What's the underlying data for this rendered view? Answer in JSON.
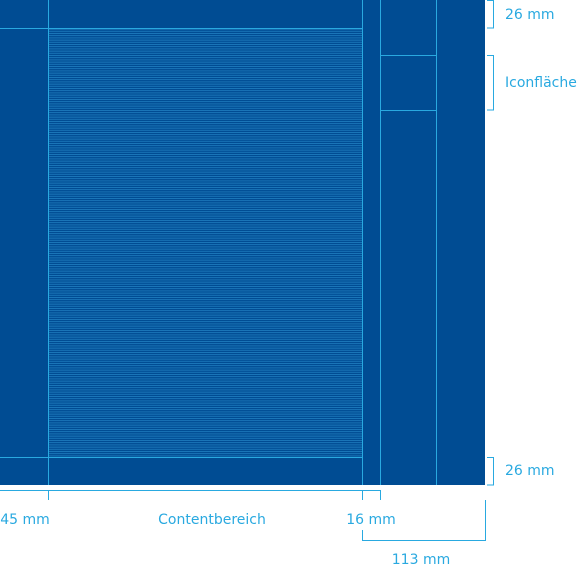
{
  "dimensions": {
    "top_margin": "26 mm",
    "icon_area": "Iconfläche",
    "bottom_margin": "26 mm",
    "left_margin": "45 mm",
    "content_area": "Contentbereich",
    "gutter": "16 mm",
    "sidebar_width": "113 mm"
  }
}
